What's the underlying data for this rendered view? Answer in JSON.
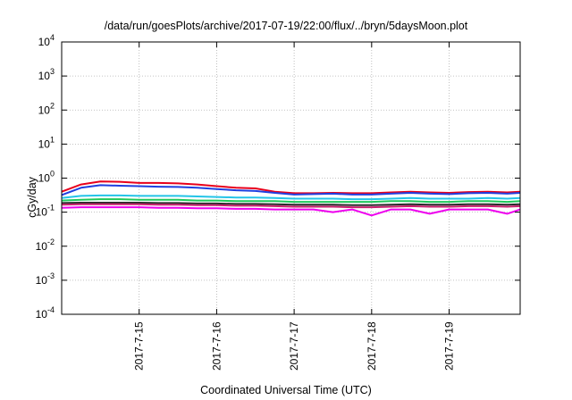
{
  "chart_data": {
    "type": "line",
    "title": "/data/run/goesPlots/archive/2017-07-19/22:00/flux/../bryn/5daysMoon.plot",
    "xlabel": "Coordinated Universal Time (UTC)",
    "ylabel": "cGy/day",
    "x_range": [
      "2017-07-14T00:00",
      "2017-07-19T22:00"
    ],
    "x_ticks": [
      "2017-7-15",
      "2017-7-16",
      "2017-7-17",
      "2017-7-18",
      "2017-7-19"
    ],
    "y_scale": "log",
    "ylim": [
      0.0001,
      10000
    ],
    "y_ticks": [
      {
        "base": "10",
        "exp": "-4",
        "value": 0.0001
      },
      {
        "base": "10",
        "exp": "-3",
        "value": 0.001
      },
      {
        "base": "10",
        "exp": "-2",
        "value": 0.01
      },
      {
        "base": "10",
        "exp": "-1",
        "value": 0.1
      },
      {
        "base": "10",
        "exp": "0",
        "value": 1
      },
      {
        "base": "10",
        "exp": "1",
        "value": 10
      },
      {
        "base": "10",
        "exp": "2",
        "value": 100
      },
      {
        "base": "10",
        "exp": "3",
        "value": 1000
      },
      {
        "base": "10",
        "exp": "4",
        "value": 10000
      }
    ],
    "grid": true,
    "legend": "none",
    "x": [
      "2017-07-14T00:00",
      "2017-07-14T06:00",
      "2017-07-14T12:00",
      "2017-07-14T18:00",
      "2017-07-15T00:00",
      "2017-07-15T06:00",
      "2017-07-15T12:00",
      "2017-07-15T18:00",
      "2017-07-16T00:00",
      "2017-07-16T06:00",
      "2017-07-16T12:00",
      "2017-07-16T18:00",
      "2017-07-17T00:00",
      "2017-07-17T06:00",
      "2017-07-17T12:00",
      "2017-07-17T18:00",
      "2017-07-18T00:00",
      "2017-07-18T06:00",
      "2017-07-18T12:00",
      "2017-07-18T18:00",
      "2017-07-19T00:00",
      "2017-07-19T06:00",
      "2017-07-19T12:00",
      "2017-07-19T18:00",
      "2017-07-19T22:00"
    ],
    "series": [
      {
        "color": "#e8001c",
        "values": [
          0.4,
          0.65,
          0.8,
          0.78,
          0.72,
          0.72,
          0.7,
          0.65,
          0.58,
          0.52,
          0.5,
          0.4,
          0.36,
          0.36,
          0.37,
          0.36,
          0.36,
          0.38,
          0.4,
          0.38,
          0.37,
          0.39,
          0.4,
          0.38,
          0.4
        ]
      },
      {
        "color": "#1f3fe0",
        "values": [
          0.32,
          0.52,
          0.62,
          0.6,
          0.58,
          0.56,
          0.55,
          0.52,
          0.48,
          0.44,
          0.42,
          0.37,
          0.33,
          0.34,
          0.35,
          0.33,
          0.33,
          0.35,
          0.37,
          0.35,
          0.34,
          0.36,
          0.37,
          0.35,
          0.37
        ]
      },
      {
        "color": "#24c4e8",
        "values": [
          0.26,
          0.3,
          0.31,
          0.31,
          0.3,
          0.3,
          0.3,
          0.29,
          0.28,
          0.27,
          0.27,
          0.26,
          0.25,
          0.25,
          0.25,
          0.24,
          0.24,
          0.25,
          0.26,
          0.25,
          0.25,
          0.25,
          0.26,
          0.25,
          0.26
        ]
      },
      {
        "color": "#1ec85a",
        "values": [
          0.22,
          0.23,
          0.24,
          0.24,
          0.23,
          0.23,
          0.23,
          0.22,
          0.22,
          0.21,
          0.21,
          0.21,
          0.2,
          0.2,
          0.2,
          0.2,
          0.2,
          0.21,
          0.21,
          0.2,
          0.2,
          0.21,
          0.21,
          0.2,
          0.21
        ]
      },
      {
        "color": "#2a2a2a",
        "values": [
          0.185,
          0.19,
          0.19,
          0.19,
          0.19,
          0.185,
          0.185,
          0.18,
          0.18,
          0.175,
          0.175,
          0.17,
          0.165,
          0.165,
          0.165,
          0.16,
          0.16,
          0.165,
          0.17,
          0.165,
          0.165,
          0.17,
          0.17,
          0.165,
          0.17
        ]
      },
      {
        "color": "#c8206e",
        "values": [
          0.165,
          0.17,
          0.17,
          0.17,
          0.17,
          0.165,
          0.165,
          0.16,
          0.16,
          0.155,
          0.155,
          0.15,
          0.145,
          0.145,
          0.145,
          0.14,
          0.14,
          0.145,
          0.15,
          0.145,
          0.145,
          0.15,
          0.15,
          0.145,
          0.15
        ]
      },
      {
        "color": "#ee00ee",
        "values": [
          0.135,
          0.14,
          0.14,
          0.14,
          0.14,
          0.135,
          0.135,
          0.13,
          0.13,
          0.125,
          0.125,
          0.12,
          0.12,
          0.12,
          0.1,
          0.12,
          0.08,
          0.12,
          0.12,
          0.09,
          0.12,
          0.12,
          0.12,
          0.09,
          0.12
        ]
      }
    ]
  }
}
